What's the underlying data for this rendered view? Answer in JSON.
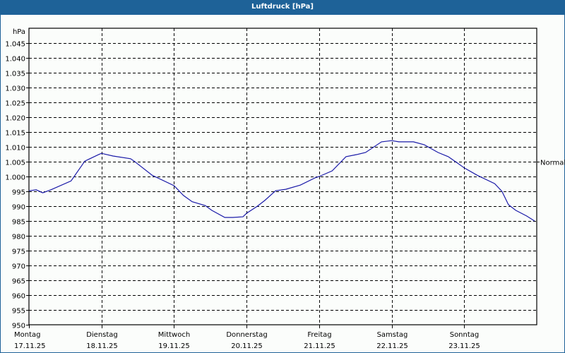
{
  "window": {
    "title": "Luftdruck [hPa]"
  },
  "chart_data": {
    "type": "line",
    "title": "Luftdruck [hPa]",
    "xlabel": "",
    "ylabel": "hPa",
    "ylim": [
      950,
      1050
    ],
    "yticks": [
      950,
      955,
      960,
      965,
      970,
      975,
      980,
      985,
      990,
      995,
      1000,
      1005,
      1010,
      1015,
      1020,
      1025,
      1030,
      1035,
      1040,
      1045
    ],
    "ytick_labels": [
      "950",
      "955",
      "960",
      "965",
      "970",
      "975",
      "980",
      "985",
      "990",
      "995",
      "1.000",
      "1.005",
      "1.010",
      "1.015",
      "1.020",
      "1.025",
      "1.030",
      "1.035",
      "1.040",
      "1.045"
    ],
    "categories": [
      {
        "day": "Montag",
        "date": "17.11.25"
      },
      {
        "day": "Dienstag",
        "date": "18.11.25"
      },
      {
        "day": "Mittwoch",
        "date": "19.11.25"
      },
      {
        "day": "Donnerstag",
        "date": "20.11.25"
      },
      {
        "day": "Freitag",
        "date": "21.11.25"
      },
      {
        "day": "Samstag",
        "date": "22.11.25"
      },
      {
        "day": "Sonntag",
        "date": "23.11.25"
      }
    ],
    "grid": true,
    "reference_line": {
      "label": "Normal",
      "value": 1005
    },
    "series": [
      {
        "name": "Luftdruck",
        "color": "#1a1aa8",
        "x_days": [
          0.0,
          0.1,
          0.19,
          0.3,
          0.58,
          0.77,
          0.96,
          1.0,
          1.16,
          1.4,
          1.45,
          1.7,
          2.0,
          2.13,
          2.25,
          2.43,
          2.52,
          2.7,
          2.81,
          2.95,
          3.0,
          3.15,
          3.25,
          3.4,
          3.54,
          3.74,
          3.94,
          4.0,
          4.18,
          4.37,
          4.52,
          4.64,
          4.86,
          5.0,
          5.1,
          5.3,
          5.45,
          5.64,
          5.78,
          5.91,
          6.0,
          6.18,
          6.42,
          6.52,
          6.61,
          6.71,
          6.86,
          6.97
        ],
        "values": [
          995.2,
          995.5,
          994.5,
          995.5,
          998.5,
          1005.2,
          1007.4,
          1007.8,
          1006.9,
          1006.0,
          1005.2,
          1000.4,
          996.9,
          993.6,
          991.5,
          990.2,
          988.6,
          986.2,
          986.2,
          986.4,
          987.6,
          990.0,
          991.9,
          995.2,
          995.7,
          997.1,
          999.5,
          1000.0,
          1001.9,
          1006.7,
          1007.4,
          1008.1,
          1011.7,
          1012.1,
          1011.7,
          1011.7,
          1010.7,
          1008.1,
          1006.7,
          1004.5,
          1002.9,
          1000.4,
          997.6,
          995.0,
          990.5,
          988.6,
          986.7,
          985.0
        ]
      }
    ]
  }
}
